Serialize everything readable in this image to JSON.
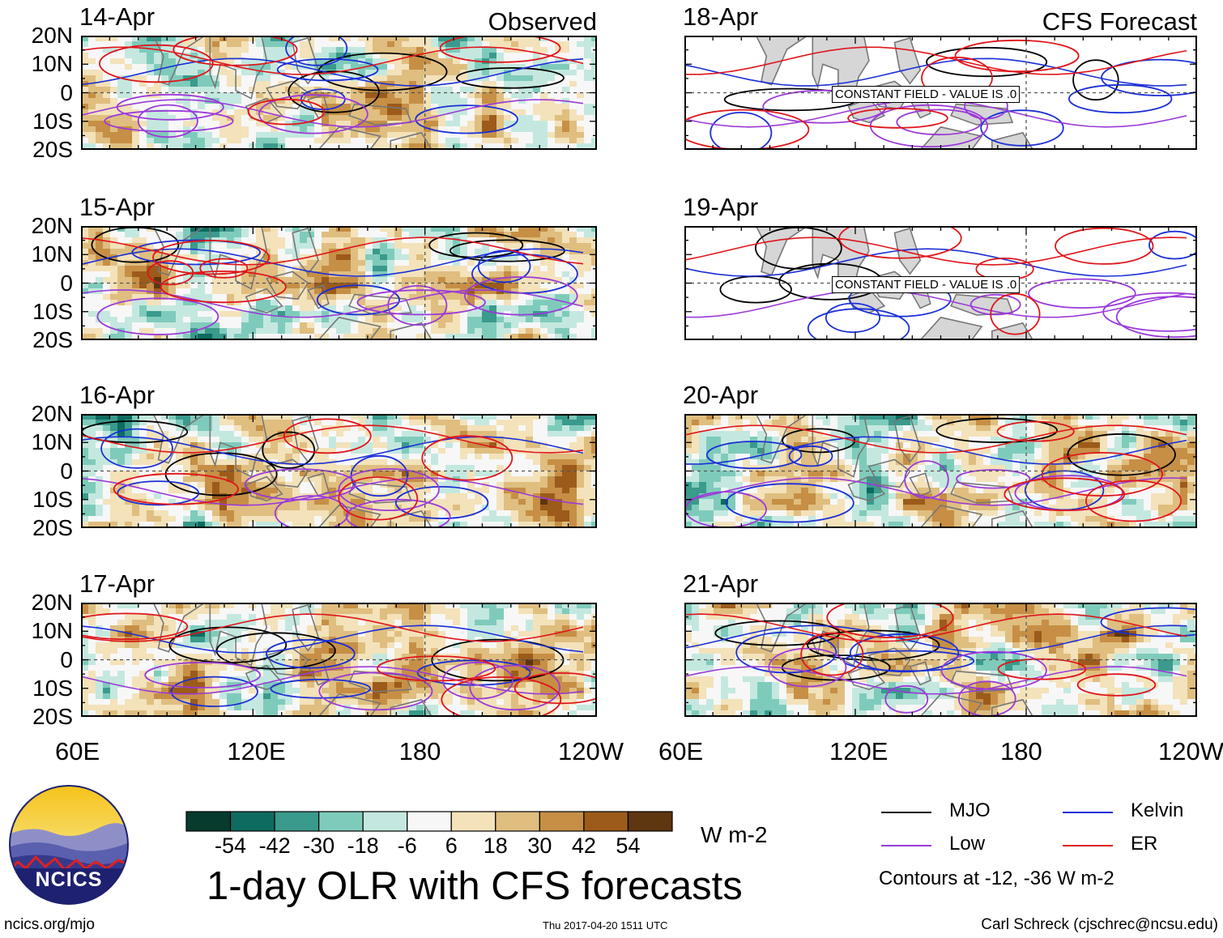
{
  "chart_data": {
    "type": "heatmap",
    "title": "1-day OLR with CFS forecasts",
    "units": "W m-2",
    "columns": [
      {
        "name": "Observed",
        "panels": [
          "14-Apr",
          "15-Apr",
          "16-Apr",
          "17-Apr"
        ]
      },
      {
        "name": "CFS Forecast",
        "panels": [
          "18-Apr",
          "19-Apr",
          "20-Apr",
          "21-Apr"
        ]
      }
    ],
    "y_ticks": [
      "20N",
      "10N",
      "0",
      "10S",
      "20S"
    ],
    "x_ticks": [
      "60E",
      "120E",
      "180",
      "120W"
    ],
    "lat_range": [
      -20,
      20
    ],
    "lon_range": [
      60,
      240
    ],
    "constant_field_note": "CONSTANT FIELD - VALUE IS .0",
    "colorbar": {
      "levels": [
        "-54",
        "-42",
        "-30",
        "-18",
        "-6",
        "6",
        "18",
        "30",
        "42",
        "54"
      ],
      "colors": [
        "#073b2e",
        "#0e6b5f",
        "#3a9a8c",
        "#7fcbbb",
        "#c4e8df",
        "#f7f7f7",
        "#f3e2ba",
        "#dfbe80",
        "#c68f45",
        "#9c5b1a",
        "#5e3610"
      ]
    },
    "contours": {
      "description": "Contours at -12, -36 W m-2",
      "levels": [
        -12,
        -36
      ],
      "series": [
        {
          "name": "MJO",
          "color": "#000000"
        },
        {
          "name": "Kelvin",
          "color": "#1b2fd6"
        },
        {
          "name": "Low",
          "color": "#9b3ad8"
        },
        {
          "name": "ER",
          "color": "#e0151b"
        }
      ]
    }
  },
  "logo": {
    "text": "NCICS"
  },
  "footer": {
    "url": "ncics.org/mjo",
    "timestamp": "Thu 2017-04-20 1511 UTC",
    "credit": "Carl Schreck (cjschrec@ncsu.edu)"
  },
  "colors": {
    "land": "#d6d6d6",
    "coast": "#777777",
    "frame": "#000000"
  }
}
